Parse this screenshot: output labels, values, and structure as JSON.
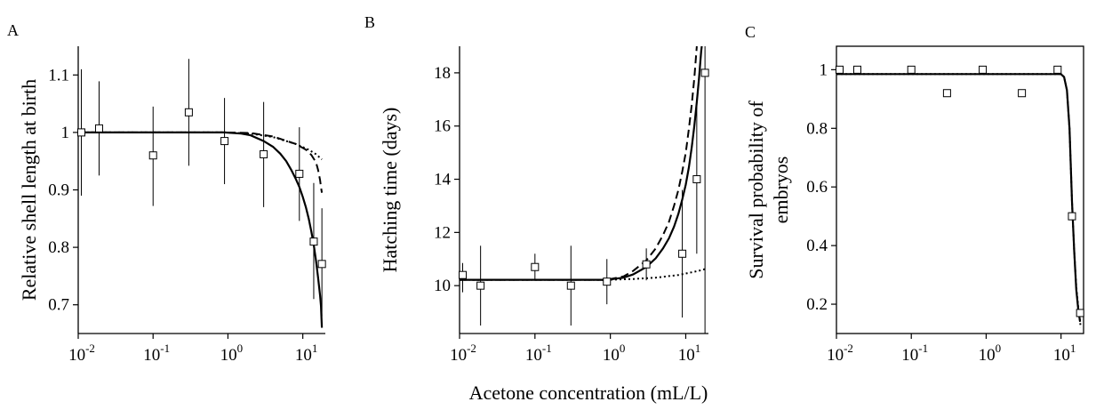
{
  "figure": {
    "shared_xlabel": "Acetone concentration (mL/L)"
  },
  "chart_data": [
    {
      "panel": "A",
      "type": "scatter",
      "xscale": "log",
      "xlim": [
        0.01,
        20
      ],
      "ylim": [
        0.65,
        1.15
      ],
      "ylabel": "Relative shell length at birth",
      "xticks": [
        {
          "value": 0.01,
          "base": "10",
          "exp": "-2"
        },
        {
          "value": 0.1,
          "base": "10",
          "exp": "-1"
        },
        {
          "value": 1,
          "base": "10",
          "exp": "0"
        },
        {
          "value": 10,
          "base": "10",
          "exp": "1"
        }
      ],
      "yticks": [
        {
          "value": 0.7,
          "label": "0.7"
        },
        {
          "value": 0.8,
          "label": "0.8"
        },
        {
          "value": 0.9,
          "label": "0.9"
        },
        {
          "value": 1.0,
          "label": "1"
        },
        {
          "value": 1.1,
          "label": "1.1"
        }
      ],
      "points": [
        {
          "x": 0.011,
          "y": 1.0,
          "ylo": 0.89,
          "yhi": 1.11
        },
        {
          "x": 0.019,
          "y": 1.007,
          "ylo": 0.925,
          "yhi": 1.089
        },
        {
          "x": 0.1,
          "y": 0.96,
          "ylo": 0.872,
          "yhi": 1.045
        },
        {
          "x": 0.3,
          "y": 1.035,
          "ylo": 0.942,
          "yhi": 1.128
        },
        {
          "x": 0.9,
          "y": 0.985,
          "ylo": 0.91,
          "yhi": 1.06
        },
        {
          "x": 3,
          "y": 0.962,
          "ylo": 0.87,
          "yhi": 1.053
        },
        {
          "x": 9,
          "y": 0.928,
          "ylo": 0.846,
          "yhi": 1.009
        },
        {
          "x": 14,
          "y": 0.81,
          "ylo": 0.71,
          "yhi": 0.912
        },
        {
          "x": 18,
          "y": 0.771,
          "ylo": 0.68,
          "yhi": 0.868
        }
      ],
      "curves": [
        {
          "style": "solid",
          "points": [
            [
              0.01,
              1.0
            ],
            [
              0.9,
              1.0
            ],
            [
              1.5,
              0.998
            ],
            [
              2,
              0.995
            ],
            [
              3,
              0.985
            ],
            [
              4,
              0.975
            ],
            [
              5,
              0.963
            ],
            [
              6,
              0.95
            ],
            [
              7,
              0.935
            ],
            [
              8,
              0.92
            ],
            [
              9,
              0.905
            ],
            [
              10,
              0.888
            ],
            [
              11,
              0.87
            ],
            [
              12,
              0.85
            ],
            [
              13,
              0.828
            ],
            [
              14,
              0.804
            ],
            [
              15,
              0.777
            ],
            [
              16,
              0.748
            ],
            [
              17,
              0.716
            ],
            [
              17.5,
              0.698
            ],
            [
              18,
              0.66
            ]
          ]
        },
        {
          "style": "dashed",
          "points": [
            [
              0.01,
              1.0
            ],
            [
              0.9,
              1.0
            ],
            [
              2,
              0.999
            ],
            [
              4,
              0.993
            ],
            [
              8,
              0.98
            ],
            [
              11,
              0.97
            ],
            [
              13,
              0.961
            ],
            [
              15,
              0.948
            ],
            [
              16,
              0.935
            ],
            [
              17,
              0.917
            ],
            [
              17.5,
              0.905
            ],
            [
              18,
              0.895
            ]
          ]
        },
        {
          "style": "dotted",
          "points": [
            [
              0.01,
              1.0
            ],
            [
              0.9,
              1.0
            ],
            [
              2,
              0.998
            ],
            [
              4,
              0.992
            ],
            [
              8,
              0.98
            ],
            [
              12,
              0.97
            ],
            [
              15,
              0.962
            ],
            [
              18,
              0.953
            ]
          ]
        }
      ]
    },
    {
      "panel": "B",
      "type": "scatter",
      "xscale": "log",
      "xlim": [
        0.01,
        20
      ],
      "ylim": [
        8.2,
        19
      ],
      "ylabel": "Hatching time (days)",
      "xticks": [
        {
          "value": 0.01,
          "base": "10",
          "exp": "-2"
        },
        {
          "value": 0.1,
          "base": "10",
          "exp": "-1"
        },
        {
          "value": 1,
          "base": "10",
          "exp": "0"
        },
        {
          "value": 10,
          "base": "10",
          "exp": "1"
        }
      ],
      "yticks": [
        {
          "value": 10,
          "label": "10"
        },
        {
          "value": 12,
          "label": "12"
        },
        {
          "value": 14,
          "label": "14"
        },
        {
          "value": 16,
          "label": "16"
        },
        {
          "value": 18,
          "label": "18"
        }
      ],
      "points": [
        {
          "x": 0.011,
          "y": 10.4,
          "ylo": 9.75,
          "yhi": 10.85
        },
        {
          "x": 0.019,
          "y": 10.0,
          "ylo": 8.5,
          "yhi": 11.5
        },
        {
          "x": 0.1,
          "y": 10.7,
          "ylo": 10.2,
          "yhi": 11.2
        },
        {
          "x": 0.3,
          "y": 10.0,
          "ylo": 8.5,
          "yhi": 11.5
        },
        {
          "x": 0.9,
          "y": 10.15,
          "ylo": 9.3,
          "yhi": 11.0
        },
        {
          "x": 3,
          "y": 10.8,
          "ylo": 10.2,
          "yhi": 11.4
        },
        {
          "x": 9,
          "y": 11.2,
          "ylo": 8.8,
          "yhi": 13.6
        },
        {
          "x": 14,
          "y": 14.0,
          "ylo": 11.2,
          "yhi": 16.8
        },
        {
          "x": 18,
          "y": 18.0,
          "ylo": 8.2,
          "yhi": 19
        }
      ],
      "curves": [
        {
          "style": "solid",
          "points": [
            [
              0.01,
              10.22
            ],
            [
              0.9,
              10.22
            ],
            [
              1.5,
              10.3
            ],
            [
              2,
              10.42
            ],
            [
              3,
              10.7
            ],
            [
              4,
              11.03
            ],
            [
              5,
              11.4
            ],
            [
              6,
              11.78
            ],
            [
              7,
              12.22
            ],
            [
              8,
              12.7
            ],
            [
              9,
              13.25
            ],
            [
              10,
              13.8
            ],
            [
              11,
              14.45
            ],
            [
              12,
              15.2
            ],
            [
              13,
              16.0
            ],
            [
              14,
              16.9
            ],
            [
              15,
              17.8
            ],
            [
              16,
              18.8
            ],
            [
              16.3,
              19
            ]
          ]
        },
        {
          "style": "dashed",
          "points": [
            [
              0.01,
              10.22
            ],
            [
              0.9,
              10.22
            ],
            [
              1.5,
              10.35
            ],
            [
              2,
              10.55
            ],
            [
              3,
              10.95
            ],
            [
              4,
              11.4
            ],
            [
              5,
              11.9
            ],
            [
              6,
              12.4
            ],
            [
              7,
              13.0
            ],
            [
              8,
              13.6
            ],
            [
              9,
              14.3
            ],
            [
              10,
              15.0
            ],
            [
              11,
              15.9
            ],
            [
              12,
              16.8
            ],
            [
              13,
              17.8
            ],
            [
              14,
              19
            ]
          ]
        },
        {
          "style": "dotted",
          "points": [
            [
              0.01,
              10.22
            ],
            [
              0.9,
              10.22
            ],
            [
              2,
              10.25
            ],
            [
              4,
              10.3
            ],
            [
              8,
              10.4
            ],
            [
              12,
              10.5
            ],
            [
              15,
              10.56
            ],
            [
              18,
              10.62
            ]
          ]
        }
      ]
    },
    {
      "panel": "C",
      "type": "scatter",
      "xscale": "log",
      "xlim": [
        0.01,
        20
      ],
      "ylim": [
        0.1,
        1.08
      ],
      "ylabel": "Survival probability of embryos",
      "xticks": [
        {
          "value": 0.01,
          "base": "10",
          "exp": "-2"
        },
        {
          "value": 0.1,
          "base": "10",
          "exp": "-1"
        },
        {
          "value": 1,
          "base": "10",
          "exp": "0"
        },
        {
          "value": 10,
          "base": "10",
          "exp": "1"
        }
      ],
      "yticks": [
        {
          "value": 0.2,
          "label": "0.2"
        },
        {
          "value": 0.4,
          "label": "0.4"
        },
        {
          "value": 0.6,
          "label": "0.6"
        },
        {
          "value": 0.8,
          "label": "0.8"
        },
        {
          "value": 1.0,
          "label": "1"
        }
      ],
      "points": [
        {
          "x": 0.011,
          "y": 1.0
        },
        {
          "x": 0.019,
          "y": 1.0
        },
        {
          "x": 0.1,
          "y": 1.0
        },
        {
          "x": 0.3,
          "y": 0.92
        },
        {
          "x": 0.9,
          "y": 1.0
        },
        {
          "x": 3,
          "y": 0.92
        },
        {
          "x": 9,
          "y": 1.0
        },
        {
          "x": 14,
          "y": 0.5
        },
        {
          "x": 18,
          "y": 0.17
        }
      ],
      "curves": [
        {
          "style": "solid",
          "points": [
            [
              0.01,
              0.985
            ],
            [
              10,
              0.985
            ],
            [
              11,
              0.975
            ],
            [
              12,
              0.93
            ],
            [
              13,
              0.8
            ],
            [
              14,
              0.55
            ],
            [
              15,
              0.38
            ],
            [
              16,
              0.25
            ],
            [
              17,
              0.18
            ],
            [
              18,
              0.14
            ]
          ]
        },
        {
          "style": "dotted",
          "points": [
            [
              0.01,
              0.985
            ],
            [
              10,
              0.985
            ],
            [
              11,
              0.975
            ],
            [
              12,
              0.93
            ],
            [
              13,
              0.8
            ],
            [
              14,
              0.55
            ],
            [
              15,
              0.38
            ],
            [
              16,
              0.26
            ],
            [
              17,
              0.19
            ],
            [
              18,
              0.14
            ],
            [
              18.3,
              0.12
            ]
          ]
        }
      ]
    }
  ]
}
